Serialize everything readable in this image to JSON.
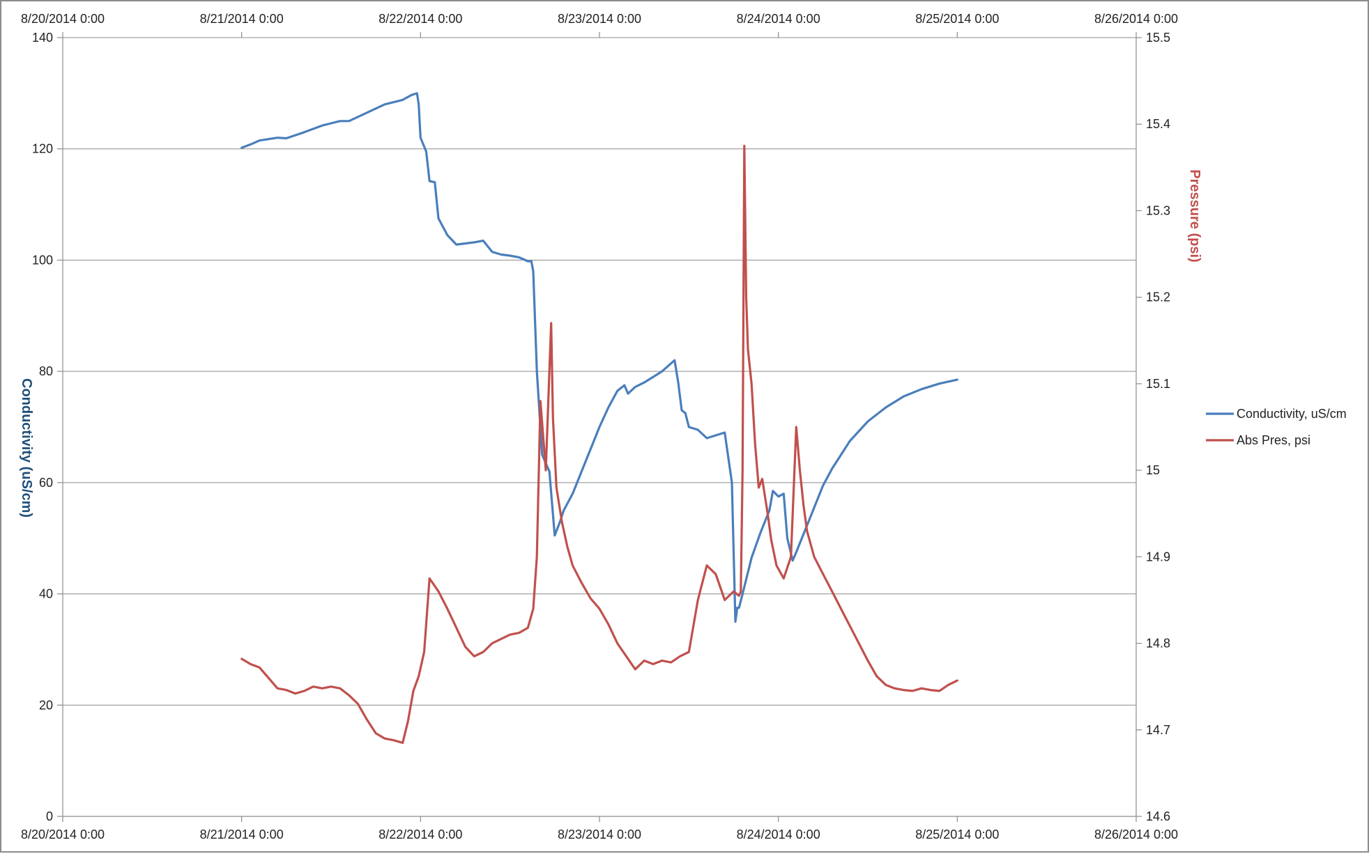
{
  "chart_data": {
    "type": "line",
    "title": "",
    "x_tick_labels": [
      "8/20/2014 0:00",
      "8/21/2014 0:00",
      "8/22/2014 0:00",
      "8/23/2014 0:00",
      "8/24/2014 0:00",
      "8/25/2014 0:00",
      "8/26/2014 0:00"
    ],
    "xlim": [
      "8/20/2014 0:00",
      "8/26/2014 0:00"
    ],
    "y_left": {
      "label": "Conductivity (uS/cm)",
      "lim": [
        0,
        140
      ],
      "ticks": [
        "0",
        "20",
        "40",
        "60",
        "80",
        "100",
        "120",
        "140"
      ],
      "color": "#1f4e79"
    },
    "y_right": {
      "label": "Pressure (psi)",
      "lim": [
        14.6,
        15.5
      ],
      "ticks": [
        "14.6",
        "14.7",
        "14.8",
        "14.9",
        "15",
        "15.1",
        "15.2",
        "15.3",
        "15.4",
        "15.5"
      ],
      "color": "#c0504d"
    },
    "grid": "horizontal",
    "legend_position": "right",
    "series": [
      {
        "name": "Conductivity, uS/cm",
        "axis": "left",
        "color": "#4a7ebb",
        "x": [
          "8/21/2014 0:00",
          "8/21/2014 1:12",
          "8/21/2014 2:24",
          "8/21/2014 4:48",
          "8/21/2014 6:00",
          "8/21/2014 8:24",
          "8/21/2014 10:48",
          "8/21/2014 12:00",
          "8/21/2014 13:12",
          "8/21/2014 14:24",
          "8/21/2014 16:48",
          "8/21/2014 19:12",
          "8/21/2014 21:36",
          "8/21/2014 22:48",
          "8/21/2014 23:31",
          "8/21/2014 23:45",
          "8/22/2014 0:00",
          "8/22/2014 0:46",
          "8/22/2014 1:12",
          "8/22/2014 1:55",
          "8/22/2014 2:24",
          "8/22/2014 3:36",
          "8/22/2014 4:48",
          "8/22/2014 6:00",
          "8/22/2014 7:12",
          "8/22/2014 8:24",
          "8/22/2014 9:36",
          "8/22/2014 10:48",
          "8/22/2014 12:00",
          "8/22/2014 13:12",
          "8/22/2014 14:24",
          "8/22/2014 14:52",
          "8/22/2014 15:07",
          "8/22/2014 15:36",
          "8/22/2014 16:19",
          "8/22/2014 17:17",
          "8/22/2014 18:00",
          "8/22/2014 18:43",
          "8/22/2014 19:12",
          "8/22/2014 20:24",
          "8/22/2014 21:36",
          "8/22/2014 22:48",
          "8/23/2014 0:00",
          "8/23/2014 1:12",
          "8/23/2014 2:24",
          "8/23/2014 3:21",
          "8/23/2014 3:50",
          "8/23/2014 4:48",
          "8/23/2014 6:00",
          "8/23/2014 8:24",
          "8/23/2014 10:05",
          "8/23/2014 10:34",
          "8/23/2014 11:02",
          "8/23/2014 11:31",
          "8/23/2014 12:00",
          "8/23/2014 13:12",
          "8/23/2014 14:24",
          "8/23/2014 15:36",
          "8/23/2014 16:48",
          "8/23/2014 17:46",
          "8/23/2014 18:14",
          "8/23/2014 18:29",
          "8/23/2014 18:43",
          "8/23/2014 19:12",
          "8/23/2014 20:24",
          "8/23/2014 21:36",
          "8/23/2014 22:48",
          "8/23/2014 23:16",
          "8/24/2014 0:00",
          "8/24/2014 0:43",
          "8/24/2014 1:12",
          "8/24/2014 1:55",
          "8/24/2014 2:24",
          "8/24/2014 3:36",
          "8/24/2014 4:48",
          "8/24/2014 6:00",
          "8/24/2014 7:12",
          "8/24/2014 9:36",
          "8/24/2014 12:00",
          "8/24/2014 14:24",
          "8/24/2014 16:48",
          "8/24/2014 19:12",
          "8/24/2014 21:36",
          "8/25/2014 0:00"
        ],
        "y": [
          120.2,
          120.8,
          121.5,
          122.0,
          121.9,
          123.0,
          124.2,
          124.6,
          125.0,
          125.0,
          126.5,
          128.0,
          128.8,
          129.7,
          130.0,
          128.0,
          122.0,
          119.5,
          114.2,
          114.0,
          107.5,
          104.5,
          102.8,
          103.0,
          103.2,
          103.5,
          101.5,
          101.0,
          100.8,
          100.5,
          99.8,
          99.8,
          98.0,
          80.0,
          65.0,
          62.0,
          50.5,
          53.0,
          55.0,
          58.0,
          62.0,
          66.0,
          70.0,
          73.5,
          76.5,
          77.5,
          76.0,
          77.2,
          78.0,
          80.0,
          82.0,
          78.0,
          73.0,
          72.5,
          70.0,
          69.5,
          68.0,
          68.5,
          69.0,
          60.0,
          35.0,
          37.5,
          37.5,
          40.0,
          46.5,
          51.0,
          55.0,
          58.5,
          57.5,
          58.0,
          50.0,
          46.0,
          47.5,
          51.5,
          55.5,
          59.5,
          62.5,
          67.5,
          71.0,
          73.5,
          75.5,
          76.8,
          77.8,
          78.5
        ]
      },
      {
        "name": "Abs Pres, psi",
        "axis": "right",
        "color": "#c0504d",
        "x": [
          "8/21/2014 0:00",
          "8/21/2014 1:12",
          "8/21/2014 2:24",
          "8/21/2014 3:36",
          "8/21/2014 4:48",
          "8/21/2014 6:00",
          "8/21/2014 7:12",
          "8/21/2014 8:24",
          "8/21/2014 9:36",
          "8/21/2014 10:48",
          "8/21/2014 12:00",
          "8/21/2014 13:12",
          "8/21/2014 14:24",
          "8/21/2014 15:36",
          "8/21/2014 16:48",
          "8/21/2014 18:00",
          "8/21/2014 19:12",
          "8/21/2014 20:24",
          "8/21/2014 21:36",
          "8/21/2014 22:19",
          "8/21/2014 23:02",
          "8/21/2014 23:45",
          "8/22/2014 0:29",
          "8/22/2014 1:12",
          "8/22/2014 2:24",
          "8/22/2014 3:36",
          "8/22/2014 4:48",
          "8/22/2014 6:00",
          "8/22/2014 7:12",
          "8/22/2014 8:24",
          "8/22/2014 9:36",
          "8/22/2014 10:48",
          "8/22/2014 12:00",
          "8/22/2014 13:12",
          "8/22/2014 14:24",
          "8/22/2014 15:07",
          "8/22/2014 15:36",
          "8/22/2014 16:05",
          "8/22/2014 16:48",
          "8/22/2014 17:31",
          "8/22/2014 17:46",
          "8/22/2014 18:14",
          "8/22/2014 18:58",
          "8/22/2014 19:41",
          "8/22/2014 20:24",
          "8/22/2014 21:36",
          "8/22/2014 22:48",
          "8/23/2014 0:00",
          "8/23/2014 1:12",
          "8/23/2014 2:24",
          "8/23/2014 3:36",
          "8/23/2014 4:48",
          "8/23/2014 6:00",
          "8/23/2014 7:12",
          "8/23/2014 8:24",
          "8/23/2014 9:36",
          "8/23/2014 10:48",
          "8/23/2014 12:00",
          "8/23/2014 13:12",
          "8/23/2014 14:24",
          "8/23/2014 15:36",
          "8/23/2014 16:48",
          "8/23/2014 18:00",
          "8/23/2014 18:43",
          "8/23/2014 18:58",
          "8/23/2014 19:12",
          "8/23/2014 19:26",
          "8/23/2014 19:41",
          "8/23/2014 19:55",
          "8/23/2014 20:24",
          "8/23/2014 20:53",
          "8/23/2014 21:22",
          "8/23/2014 21:50",
          "8/23/2014 22:34",
          "8/23/2014 23:02",
          "8/23/2014 23:45",
          "8/24/2014 0:43",
          "8/24/2014 1:41",
          "8/24/2014 2:24",
          "8/24/2014 2:53",
          "8/24/2014 3:22",
          "8/24/2014 3:50",
          "8/24/2014 4:48",
          "8/24/2014 6:00",
          "8/24/2014 7:12",
          "8/24/2014 8:24",
          "8/24/2014 9:36",
          "8/24/2014 10:48",
          "8/24/2014 12:00",
          "8/24/2014 13:12",
          "8/24/2014 14:24",
          "8/24/2014 15:36",
          "8/24/2014 16:48",
          "8/24/2014 18:00",
          "8/24/2014 19:12",
          "8/24/2014 20:24",
          "8/24/2014 21:36",
          "8/24/2014 22:48",
          "8/25/2014 0:00"
        ],
        "y": [
          14.782,
          14.776,
          14.772,
          14.76,
          14.748,
          14.746,
          14.742,
          14.745,
          14.75,
          14.748,
          14.75,
          14.748,
          14.74,
          14.73,
          14.712,
          14.696,
          14.69,
          14.688,
          14.685,
          14.71,
          14.745,
          14.762,
          14.79,
          14.875,
          14.86,
          14.84,
          14.818,
          14.796,
          14.785,
          14.79,
          14.8,
          14.805,
          14.81,
          14.812,
          14.818,
          14.84,
          14.9,
          15.08,
          15.0,
          15.17,
          15.06,
          14.98,
          14.94,
          14.912,
          14.89,
          14.87,
          14.852,
          14.84,
          14.822,
          14.8,
          14.785,
          14.77,
          14.78,
          14.776,
          14.78,
          14.778,
          14.785,
          14.79,
          14.85,
          14.89,
          14.88,
          14.85,
          14.86,
          14.855,
          14.86,
          15.0,
          15.375,
          15.2,
          15.14,
          15.1,
          15.03,
          14.98,
          14.99,
          14.95,
          14.92,
          14.89,
          14.875,
          14.9,
          15.05,
          15.0,
          14.96,
          14.93,
          14.9,
          14.88,
          14.86,
          14.84,
          14.82,
          14.8,
          14.78,
          14.762,
          14.752,
          14.748,
          14.746,
          14.745,
          14.748,
          14.746,
          14.745,
          14.752,
          14.757
        ]
      }
    ]
  }
}
